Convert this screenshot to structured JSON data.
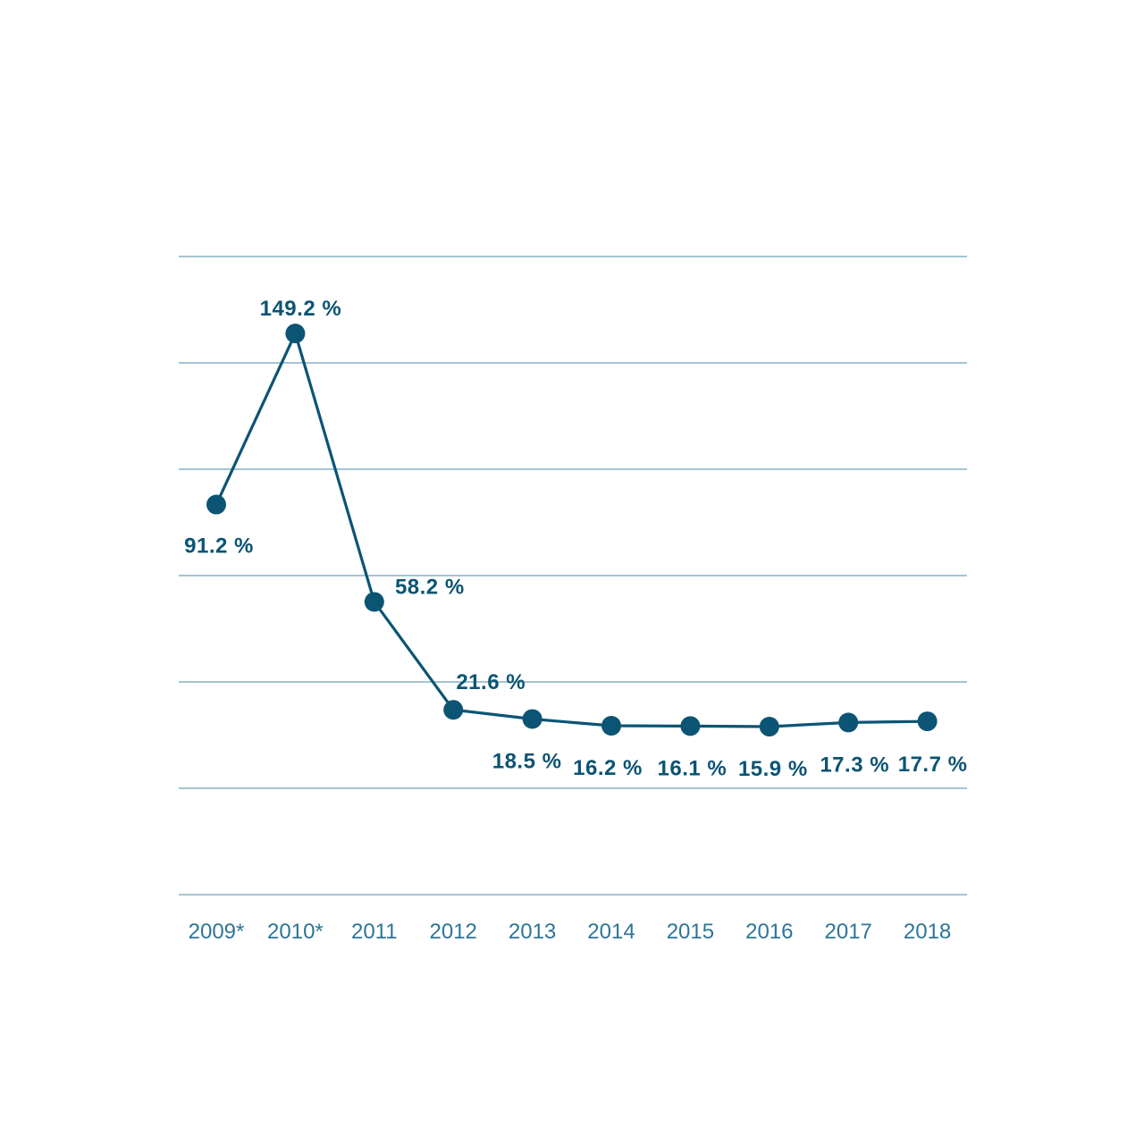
{
  "chart_data": {
    "type": "line",
    "title": "",
    "xlabel": "",
    "ylabel": "",
    "categories": [
      "2009*",
      "2010*",
      "2011",
      "2012",
      "2013",
      "2014",
      "2015",
      "2016",
      "2017",
      "2018"
    ],
    "series": [
      {
        "values": [
          91.2,
          149.2,
          58.2,
          21.6,
          18.5,
          16.2,
          16.1,
          15.9,
          17.3,
          17.7
        ],
        "data_labels": [
          "91.2 %",
          "149.2 %",
          "58.2 %",
          "21.6 %",
          "18.5 %",
          "16.2 %",
          "16.1 %",
          "15.9 %",
          "17.3 %",
          "17.7 %"
        ]
      }
    ],
    "ylim": [
      -25,
      150
    ],
    "gridlines": [
      150,
      125,
      100,
      75,
      50,
      25,
      0
    ],
    "grid": true,
    "legend": "none",
    "colors": {
      "line": "#0b5474",
      "marker": "#0b5474",
      "data_label": "#0b5474",
      "tick_label": "#2e7596",
      "grid": "#4a89a6"
    }
  }
}
